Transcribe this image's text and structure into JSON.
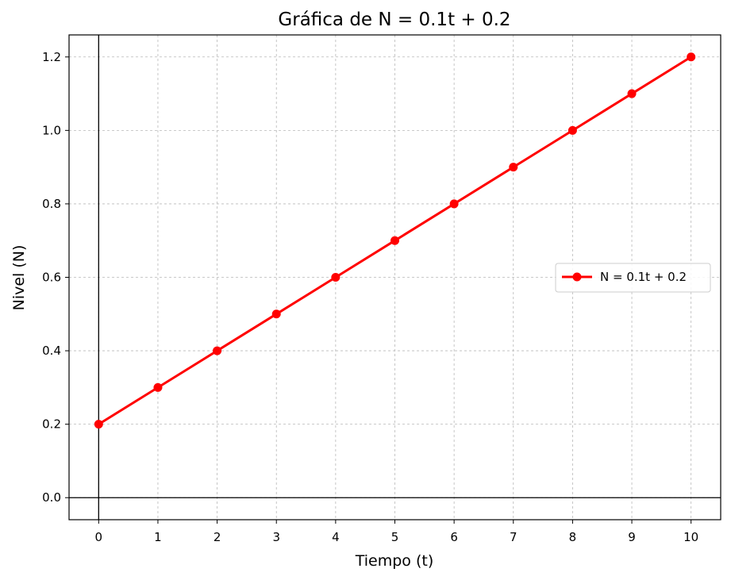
{
  "chart_data": {
    "type": "line",
    "title": "Gráfica de N = 0.1t + 0.2",
    "xlabel": "Tiempo (t)",
    "ylabel": "Nivel (N)",
    "xlim": [
      -0.5,
      10.5
    ],
    "ylim": [
      -0.06,
      1.26
    ],
    "xticks": [
      0,
      1,
      2,
      3,
      4,
      5,
      6,
      7,
      8,
      9,
      10
    ],
    "xtick_labels": [
      "0",
      "1",
      "2",
      "3",
      "4",
      "5",
      "6",
      "7",
      "8",
      "9",
      "10"
    ],
    "yticks": [
      0.0,
      0.2,
      0.4,
      0.6,
      0.8,
      1.0,
      1.2
    ],
    "ytick_labels": [
      "0.0",
      "0.2",
      "0.4",
      "0.6",
      "0.8",
      "1.0",
      "1.2"
    ],
    "grid": true,
    "reference_lines": {
      "x": 0,
      "y": 0
    },
    "legend_position": "center-right",
    "series": [
      {
        "name": "N = 0.1t + 0.2",
        "color": "#ff0000",
        "marker": "circle",
        "x": [
          0,
          1,
          2,
          3,
          4,
          5,
          6,
          7,
          8,
          9,
          10
        ],
        "y": [
          0.2,
          0.3,
          0.4,
          0.5,
          0.6,
          0.7,
          0.8,
          0.9,
          1.0,
          1.1,
          1.2
        ]
      }
    ]
  }
}
